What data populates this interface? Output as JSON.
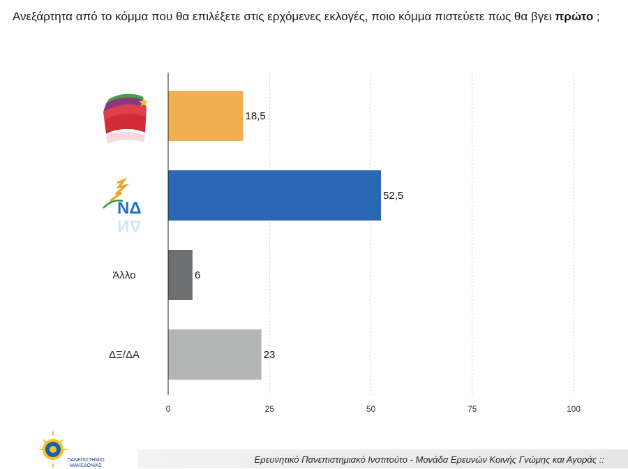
{
  "question": {
    "text_before": "Ανεξάρτητα από το κόμμα που θα επιλέξετε στις ερχόμενες εκλογές, ποιο κόμμα πιστεύετε πως θα βγει ",
    "text_bold": "πρώτο",
    "text_after": " ;"
  },
  "chart_data": {
    "type": "bar",
    "orientation": "horizontal",
    "categories": [
      "ΣΥΡΙΖΑ",
      "ΝΔ",
      "Άλλο",
      "ΔΞ/ΔΑ"
    ],
    "category_display": [
      "",
      "",
      "Άλλο",
      "ΔΞ/ΔΑ"
    ],
    "values": [
      18.5,
      52.5,
      6,
      23
    ],
    "value_labels": [
      "18,5",
      "52,5",
      "6",
      "23"
    ],
    "colors": [
      "#f0b051",
      "#2a68b4",
      "#6d6f70",
      "#b4b6b5"
    ],
    "xlim": [
      0,
      100
    ],
    "xticks": [
      0,
      25,
      50,
      75,
      100
    ],
    "xtick_labels": [
      "0",
      "25",
      "50",
      "75",
      "100"
    ],
    "grid": true,
    "title": "",
    "xlabel": "",
    "ylabel": ""
  },
  "logos": {
    "party_1_icon": "syriza-logo-icon",
    "party_2_text": "ΝΔ",
    "party_2_icon": "nd-logo-icon"
  },
  "footer": {
    "institute": "Ερευνητικό Πανεπιστημιακό Ινστιτούτο - Μονάδα Ερευνών Κοινής Γνώμης και Αγοράς ::",
    "university": "ΠΑΝΕΠΙΣΤΗΜΙΟ ΜΑΚΕΔΟΝΙΑΣ"
  }
}
